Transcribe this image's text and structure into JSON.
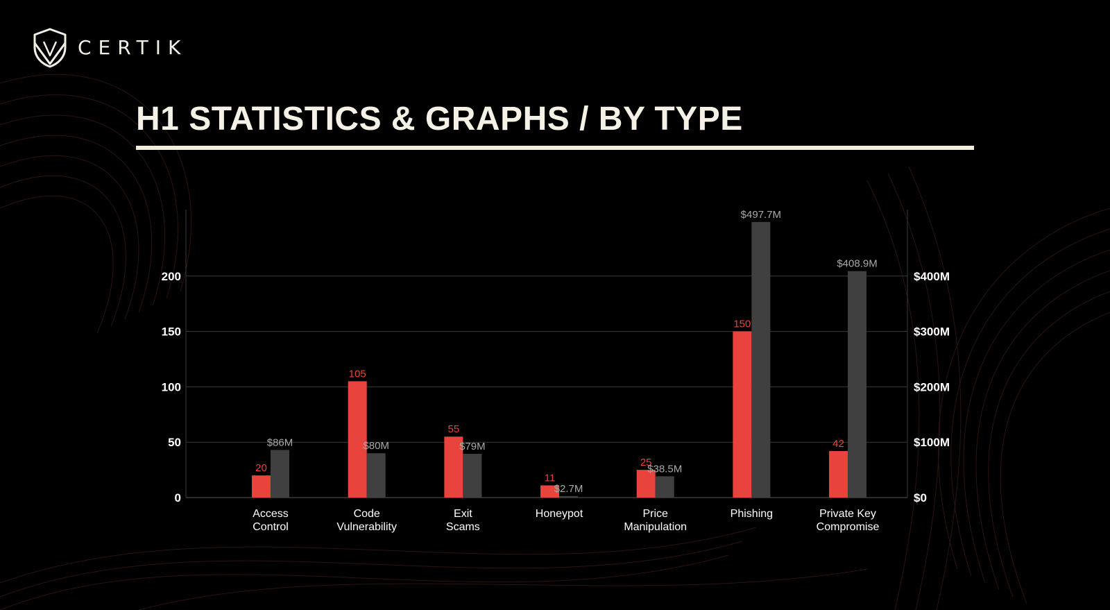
{
  "brand": {
    "logo_text": "CERTIK"
  },
  "page": {
    "title": "H1 STATISTICS & GRAPHS / BY TYPE"
  },
  "colors": {
    "background": "#000000",
    "count_bar": "#e8433c",
    "count_label": "#e8433c",
    "value_bar": "#404040",
    "value_label": "#a9a9a9",
    "axis_text": "#ffffff",
    "grid": "#3a3a3a",
    "rule": "#f2ecdc"
  },
  "icons": {
    "logo": "certik-shield-icon"
  },
  "chart_data": {
    "type": "bar",
    "categories": [
      [
        "Access",
        "Control"
      ],
      [
        "Code",
        "Vulnerability"
      ],
      [
        "Exit",
        "Scams"
      ],
      [
        "Honeypot"
      ],
      [
        "Price",
        "Manipulation"
      ],
      [
        "Phishing"
      ],
      [
        "Private Key",
        "Compromise"
      ]
    ],
    "series": [
      {
        "axis": "left",
        "values": [
          20,
          105,
          55,
          11,
          25,
          150,
          42
        ],
        "labels": [
          "20",
          "105",
          "55",
          "11",
          "25",
          "150",
          "42"
        ]
      },
      {
        "axis": "right",
        "values": [
          86,
          80,
          79,
          2.7,
          38.5,
          497.7,
          408.9
        ],
        "labels": [
          "$86M",
          "$80M",
          "$79M",
          "$2.7M",
          "$38.5M",
          "$497.7M",
          "$408.9M"
        ]
      }
    ],
    "y_left": {
      "ticks": [
        0,
        50,
        100,
        150,
        200
      ],
      "tick_labels": [
        "0",
        "50",
        "100",
        "150",
        "200"
      ],
      "range": [
        0,
        260
      ]
    },
    "y_right": {
      "ticks": [
        0,
        100,
        200,
        300,
        400
      ],
      "tick_labels": [
        "$0",
        "$100M",
        "$200M",
        "$300M",
        "$400M"
      ],
      "range": [
        0,
        520
      ]
    },
    "grid": true,
    "legend": "none",
    "title": "",
    "xlabel": "",
    "ylabel": ""
  }
}
